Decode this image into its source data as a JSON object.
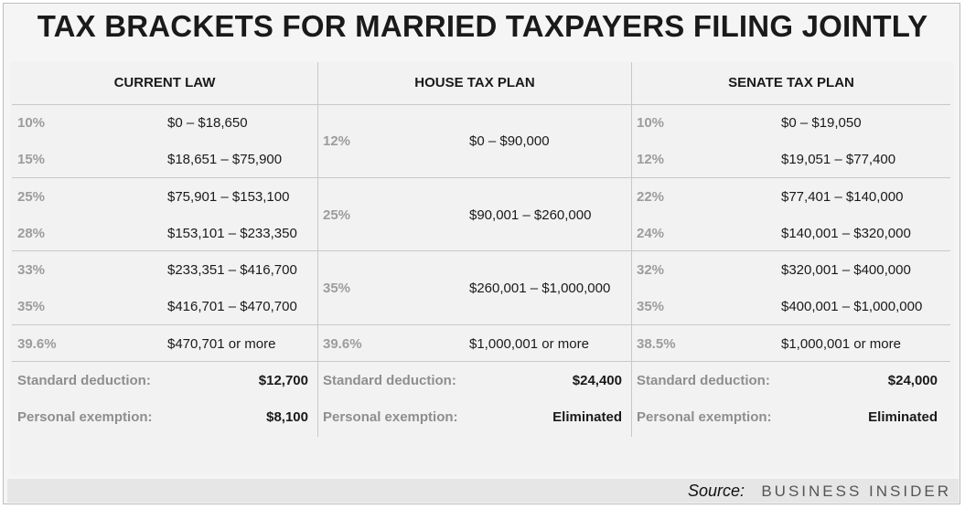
{
  "title": "TAX BRACKETS FOR MARRIED TAXPAYERS FILING JOINTLY",
  "chart_data": {
    "type": "table",
    "columns": [
      {
        "header": "CURRENT LAW",
        "rows": [
          {
            "rate": "10%",
            "range": "$0 – $18,650"
          },
          {
            "rate": "15%",
            "range": "$18,651 – $75,900"
          },
          {
            "rate": "25%",
            "range": "$75,901 – $153,100"
          },
          {
            "rate": "28%",
            "range": "$153,101 – $233,350"
          },
          {
            "rate": "33%",
            "range": "$233,351 – $416,700"
          },
          {
            "rate": "35%",
            "range": "$416,701 – $470,700"
          },
          {
            "rate": "39.6%",
            "range": "$470,701 or more"
          }
        ],
        "standard_deduction": {
          "label": "Standard deduction:",
          "value": "$12,700"
        },
        "personal_exemption": {
          "label": "Personal exemption:",
          "value": "$8,100"
        }
      },
      {
        "header": "HOUSE TAX PLAN",
        "rows": [
          {
            "rate": "12%",
            "range": "$0 – $90,000"
          },
          {
            "rate": "25%",
            "range": "$90,001 – $260,000"
          },
          {
            "rate": "35%",
            "range": "$260,001 – $1,000,000"
          },
          {
            "rate": "39.6%",
            "range": "$1,000,001 or more"
          }
        ],
        "standard_deduction": {
          "label": "Standard deduction:",
          "value": "$24,400"
        },
        "personal_exemption": {
          "label": "Personal exemption:",
          "value": "Eliminated"
        }
      },
      {
        "header": "SENATE TAX PLAN",
        "rows": [
          {
            "rate": "10%",
            "range": "$0 – $19,050"
          },
          {
            "rate": "12%",
            "range": "$19,051 – $77,400"
          },
          {
            "rate": "22%",
            "range": "$77,401 – $140,000"
          },
          {
            "rate": "24%",
            "range": "$140,001 – $320,000"
          },
          {
            "rate": "32%",
            "range": "$320,001 – $400,000"
          },
          {
            "rate": "35%",
            "range": "$400,001 – $1,000,000"
          },
          {
            "rate": "38.5%",
            "range": "$1,000,001 or more"
          }
        ],
        "standard_deduction": {
          "label": "Standard deduction:",
          "value": "$24,000"
        },
        "personal_exemption": {
          "label": "Personal exemption:",
          "value": "Eliminated"
        }
      }
    ]
  },
  "footer": {
    "source_label": "Source:",
    "brand": "BUSINESS INSIDER"
  }
}
